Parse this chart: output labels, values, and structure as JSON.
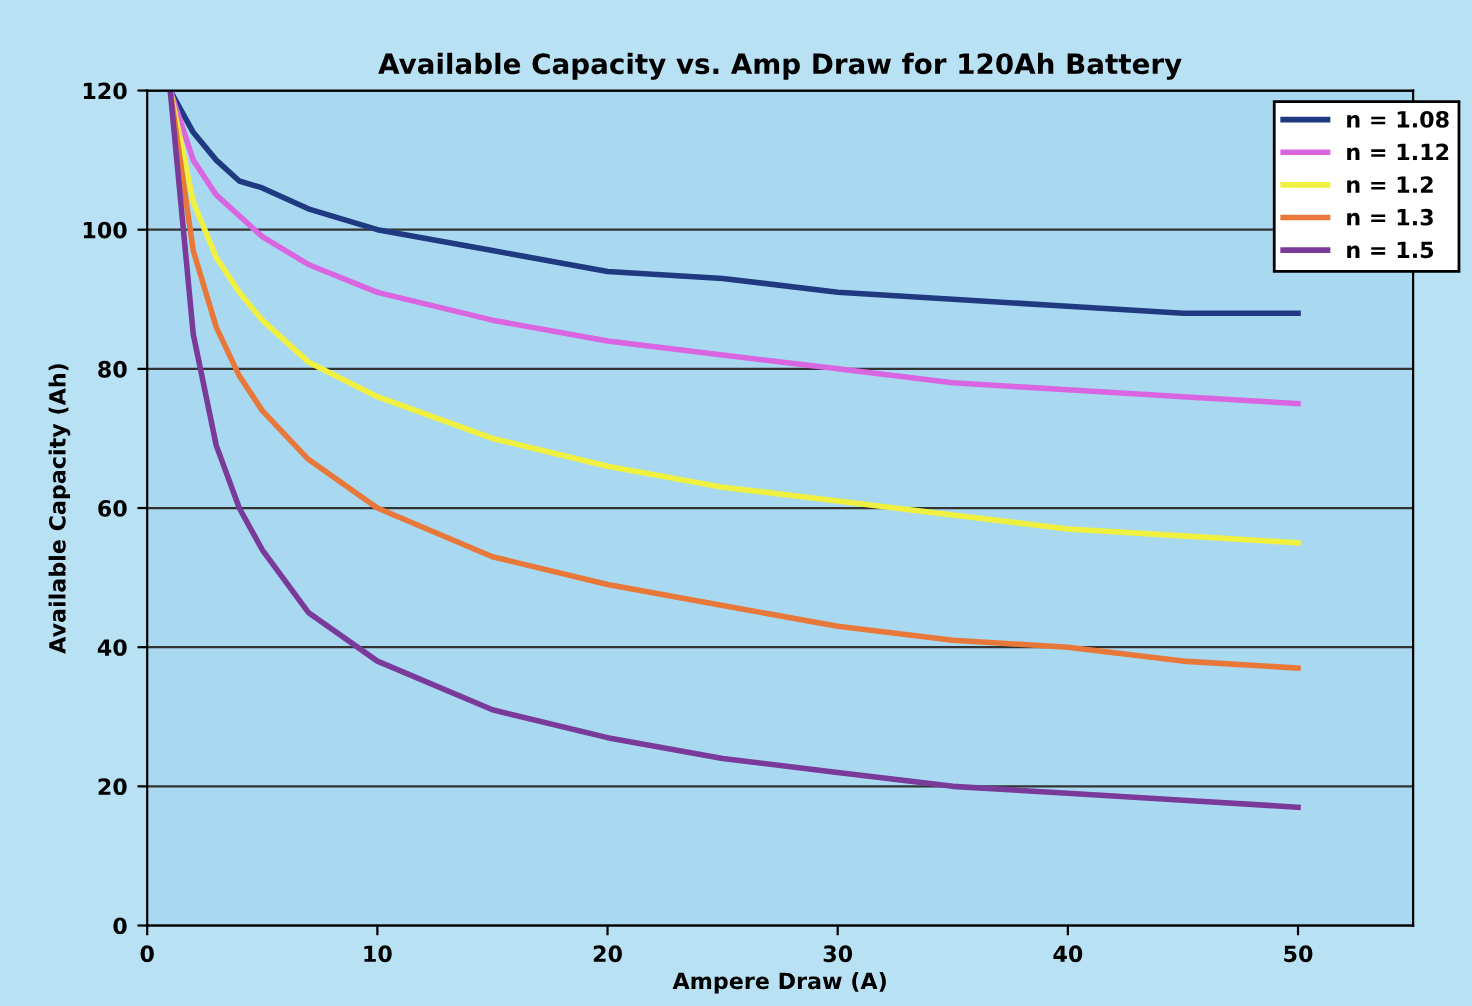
{
  "chart_data": {
    "type": "line",
    "title": "Available Capacity vs. Amp Draw for 120Ah Battery",
    "xlabel": "Ampere Draw (A)",
    "ylabel": "Available Capacity (Ah)",
    "x": [
      1,
      2,
      3,
      4,
      5,
      7,
      10,
      15,
      20,
      25,
      30,
      35,
      40,
      45,
      50
    ],
    "series": [
      {
        "name": "n = 1.08",
        "color": "#1f3a80",
        "values": [
          120,
          114,
          110,
          107,
          106,
          103,
          100,
          97,
          94,
          93,
          91,
          90,
          89,
          88,
          88
        ]
      },
      {
        "name": "n = 1.12",
        "color": "#d966e0",
        "values": [
          120,
          110,
          105,
          102,
          99,
          95,
          91,
          87,
          84,
          82,
          80,
          78,
          77,
          76,
          75
        ]
      },
      {
        "name": "n = 1.2",
        "color": "#f0f040",
        "values": [
          120,
          104,
          96,
          91,
          87,
          81,
          76,
          70,
          66,
          63,
          61,
          59,
          57,
          56,
          55
        ]
      },
      {
        "name": "n = 1.3",
        "color": "#e8783a",
        "values": [
          120,
          97,
          86,
          79,
          74,
          67,
          60,
          53,
          49,
          46,
          43,
          41,
          40,
          38,
          37
        ]
      },
      {
        "name": "n = 1.5",
        "color": "#7a3a9a",
        "values": [
          120,
          85,
          69,
          60,
          54,
          45,
          38,
          31,
          27,
          24,
          22,
          20,
          19,
          18,
          17
        ]
      }
    ],
    "xlim": [
      0,
      55
    ],
    "xticks": [
      0,
      10,
      20,
      30,
      40,
      50
    ],
    "ylim": [
      0,
      120
    ],
    "yticks": [
      0,
      20,
      40,
      60,
      80,
      100,
      120
    ],
    "grid": "y",
    "legend": "top right",
    "marker": "none",
    "line_style": "solid"
  }
}
